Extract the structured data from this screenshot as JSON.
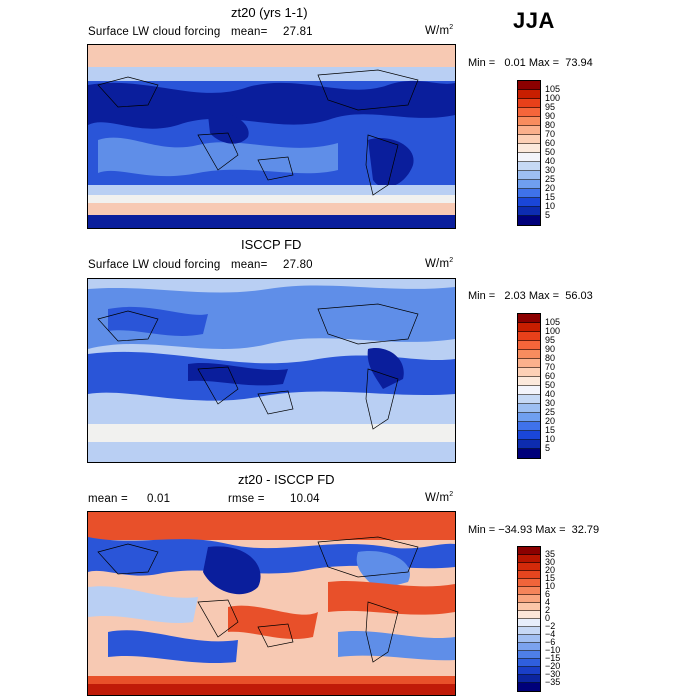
{
  "season": "JJA",
  "panels": [
    {
      "title": "zt20 (yrs 1-1)",
      "variable": "Surface LW cloud forcing",
      "mean_label": "mean=",
      "mean_value": "27.81",
      "units_base": "W/m",
      "units_exp": "2",
      "minmax_text": "Min =   0.01 Max =  73.94",
      "colorbar_labels": [
        "105",
        "100",
        "95",
        "90",
        "80",
        "70",
        "60",
        "50",
        "40",
        "30",
        "25",
        "20",
        "15",
        "10",
        "5"
      ],
      "colorbar_colors": [
        "#8b0000",
        "#c81e00",
        "#e8401a",
        "#f5653a",
        "#f88c5e",
        "#fbb08c",
        "#fdd0b6",
        "#fce9dc",
        "#f3f4fb",
        "#c6d9f5",
        "#9dbff2",
        "#6f9ff0",
        "#3f72ea",
        "#1a46d8",
        "#0d2cb0",
        "#00007a"
      ]
    },
    {
      "title": "ISCCP FD",
      "variable": "Surface LW cloud forcing",
      "mean_label": "mean=",
      "mean_value": "27.80",
      "units_base": "W/m",
      "units_exp": "2",
      "minmax_text": "Min =   2.03 Max =  56.03",
      "colorbar_labels": [
        "105",
        "100",
        "95",
        "90",
        "80",
        "70",
        "60",
        "50",
        "40",
        "30",
        "25",
        "20",
        "15",
        "10",
        "5"
      ],
      "colorbar_colors": [
        "#8b0000",
        "#c81e00",
        "#e8401a",
        "#f5653a",
        "#f88c5e",
        "#fbb08c",
        "#fdd0b6",
        "#fce9dc",
        "#f3f4fb",
        "#c6d9f5",
        "#9dbff2",
        "#6f9ff0",
        "#3f72ea",
        "#1a46d8",
        "#0d2cb0",
        "#00007a"
      ]
    },
    {
      "title": "zt20 - ISCCP FD",
      "mean_label": "mean =",
      "mean_value": "0.01",
      "rmse_label": "rmse =",
      "rmse_value": "10.04",
      "units_base": "W/m",
      "units_exp": "2",
      "minmax_text": "Min = −34.93 Max =  32.79",
      "colorbar_labels": [
        "35",
        "30",
        "20",
        "15",
        "10",
        "6",
        "4",
        "2",
        "0",
        "−2",
        "−4",
        "−6",
        "−10",
        "−15",
        "−20",
        "−30",
        "−35"
      ],
      "colorbar_colors": [
        "#8b0000",
        "#b81500",
        "#d42a0a",
        "#e6451f",
        "#f0643a",
        "#f5845a",
        "#f9a57f",
        "#fcc6a8",
        "#fde6d8",
        "#e8eefb",
        "#c7d8f5",
        "#a2bff2",
        "#7ba2ee",
        "#4e7fe8",
        "#2f5fde",
        "#1a3fc8",
        "#0c25a0",
        "#00007a"
      ]
    }
  ],
  "map_colors": {
    "deep_blue": "#0a1e9c",
    "blue": "#2a55d8",
    "mid_blue": "#5f8ee8",
    "light_blue": "#b9cff3",
    "pale": "#f1f1ef",
    "pale_red": "#f7c9b3",
    "red": "#e8502a",
    "dark_red": "#c01a08"
  }
}
